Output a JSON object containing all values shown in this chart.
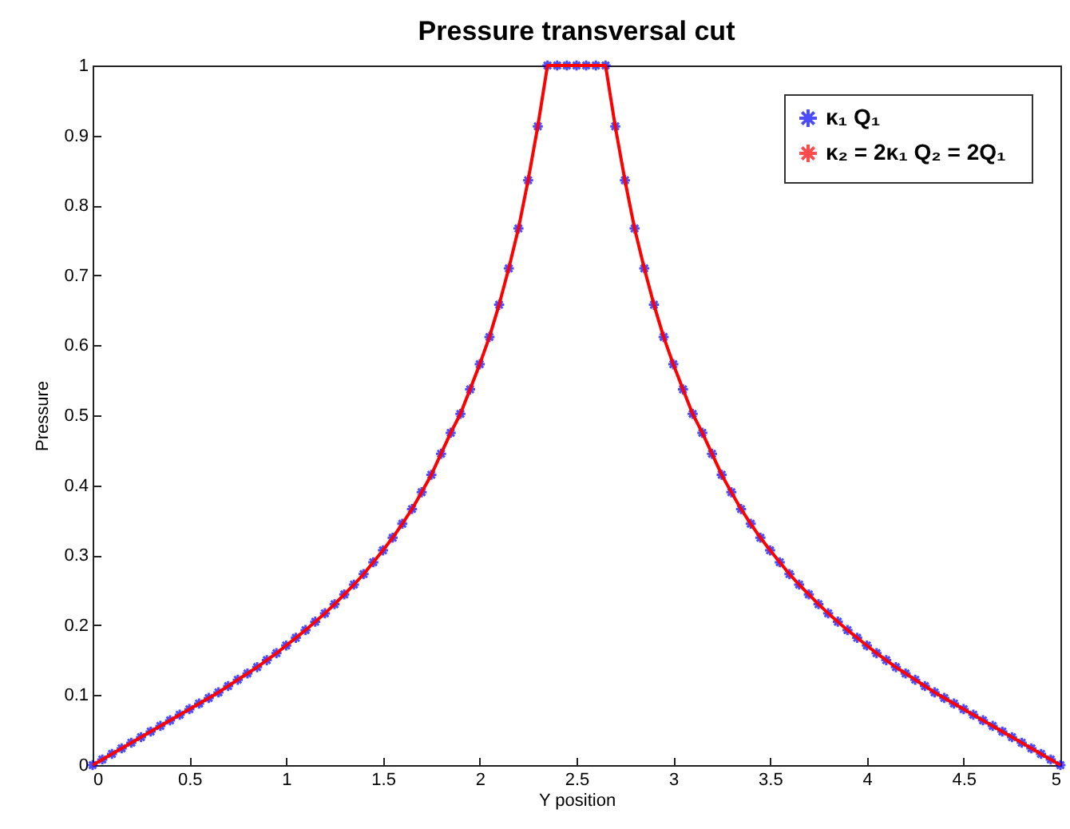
{
  "chart_data": {
    "type": "line",
    "title": "Pressure transversal cut",
    "xlabel": "Y position",
    "ylabel": "Pressure",
    "x": [
      0,
      0.05,
      0.1,
      0.15,
      0.2,
      0.25,
      0.3,
      0.35,
      0.4,
      0.45,
      0.5,
      0.55,
      0.6,
      0.65,
      0.7,
      0.75,
      0.8,
      0.85,
      0.9,
      0.95,
      1,
      1.05,
      1.1,
      1.15,
      1.2,
      1.25,
      1.3,
      1.35,
      1.4,
      1.45,
      1.5,
      1.55,
      1.6,
      1.65,
      1.7,
      1.75,
      1.8,
      1.85,
      1.9,
      1.95,
      2,
      2.05,
      2.1,
      2.15,
      2.2,
      2.25,
      2.3,
      2.35,
      2.4,
      2.45,
      2.5,
      2.55,
      2.6,
      2.65,
      2.7,
      2.75,
      2.8,
      2.85,
      2.9,
      2.95,
      3,
      3.05,
      3.1,
      3.15,
      3.2,
      3.25,
      3.3,
      3.35,
      3.4,
      3.45,
      3.5,
      3.55,
      3.6,
      3.65,
      3.7,
      3.75,
      3.8,
      3.85,
      3.9,
      3.95,
      4,
      4.05,
      4.1,
      4.15,
      4.2,
      4.25,
      4.3,
      4.35,
      4.4,
      4.45,
      4.5,
      4.55,
      4.6,
      4.65,
      4.7,
      4.75,
      4.8,
      4.85,
      4.9,
      4.95,
      5
    ],
    "series": [
      {
        "name": "κ₁   Q₁",
        "type": "scatter",
        "marker": "cross",
        "color": "#0000ff",
        "values": [
          0,
          0.008,
          0.016,
          0.024,
          0.032,
          0.04,
          0.048,
          0.056,
          0.064,
          0.072,
          0.08,
          0.088,
          0.096,
          0.104,
          0.113,
          0.122,
          0.131,
          0.14,
          0.15,
          0.16,
          0.171,
          0.182,
          0.193,
          0.205,
          0.217,
          0.23,
          0.244,
          0.258,
          0.273,
          0.29,
          0.307,
          0.325,
          0.345,
          0.366,
          0.39,
          0.415,
          0.445,
          0.475,
          0.502,
          0.537,
          0.573,
          0.612,
          0.658,
          0.71,
          0.767,
          0.836,
          0.913,
          1,
          1,
          1,
          1,
          1,
          1,
          1,
          0.913,
          0.836,
          0.767,
          0.71,
          0.658,
          0.612,
          0.573,
          0.537,
          0.502,
          0.475,
          0.445,
          0.415,
          0.39,
          0.366,
          0.345,
          0.325,
          0.307,
          0.29,
          0.273,
          0.258,
          0.244,
          0.23,
          0.217,
          0.205,
          0.193,
          0.182,
          0.171,
          0.16,
          0.15,
          0.14,
          0.131,
          0.122,
          0.113,
          0.104,
          0.096,
          0.088,
          0.08,
          0.072,
          0.064,
          0.056,
          0.048,
          0.04,
          0.032,
          0.024,
          0.016,
          0.008,
          0
        ]
      },
      {
        "name": "κ₂ = 2κ₁   Q₂ = 2Q₁",
        "line_style": "solid",
        "color": "#ff0000",
        "values": [
          0,
          0.008,
          0.016,
          0.024,
          0.032,
          0.04,
          0.048,
          0.056,
          0.064,
          0.072,
          0.08,
          0.088,
          0.096,
          0.104,
          0.113,
          0.122,
          0.131,
          0.14,
          0.15,
          0.16,
          0.171,
          0.182,
          0.193,
          0.205,
          0.217,
          0.23,
          0.244,
          0.258,
          0.273,
          0.29,
          0.307,
          0.325,
          0.345,
          0.366,
          0.39,
          0.415,
          0.445,
          0.475,
          0.502,
          0.537,
          0.573,
          0.612,
          0.658,
          0.71,
          0.767,
          0.836,
          0.913,
          1,
          1,
          1,
          1,
          1,
          1,
          1,
          0.913,
          0.836,
          0.767,
          0.71,
          0.658,
          0.612,
          0.573,
          0.537,
          0.502,
          0.475,
          0.445,
          0.415,
          0.39,
          0.366,
          0.345,
          0.325,
          0.307,
          0.29,
          0.273,
          0.258,
          0.244,
          0.23,
          0.217,
          0.205,
          0.193,
          0.182,
          0.171,
          0.16,
          0.15,
          0.14,
          0.131,
          0.122,
          0.113,
          0.104,
          0.096,
          0.088,
          0.08,
          0.072,
          0.064,
          0.056,
          0.048,
          0.04,
          0.032,
          0.024,
          0.016,
          0.008,
          0
        ]
      }
    ],
    "xlim": [
      0,
      5
    ],
    "xticks": [
      0,
      0.5,
      1,
      1.5,
      2,
      2.5,
      3,
      3.5,
      4,
      4.5,
      5
    ],
    "ylim": [
      0,
      1
    ],
    "yticks": [
      0,
      0.1,
      0.2,
      0.3,
      0.4,
      0.5,
      0.6,
      0.7,
      0.8,
      0.9,
      1
    ],
    "grid": false,
    "legend": "top right"
  }
}
